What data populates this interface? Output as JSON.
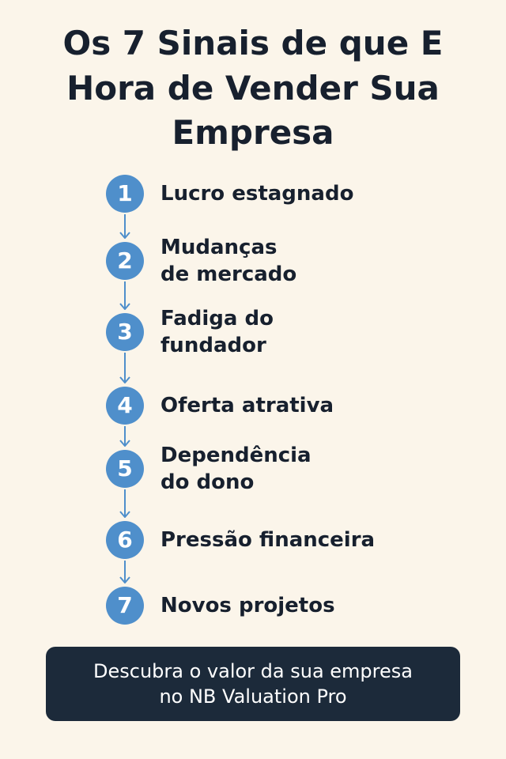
{
  "title": {
    "line1": "Os 7 Sinais de que E",
    "line2": "Hora de Vender Sua",
    "line3": "Empresa"
  },
  "accent_color": "#4f8fcb",
  "steps": [
    {
      "number": "1",
      "line1": "Lucro estagnado",
      "line2": ""
    },
    {
      "number": "2",
      "line1": "Mudanças",
      "line2": "de mercado"
    },
    {
      "number": "3",
      "line1": "Fadiga do",
      "line2": "fundador"
    },
    {
      "number": "4",
      "line1": "Oferta atrativa",
      "line2": ""
    },
    {
      "number": "5",
      "line1": "Dependência",
      "line2": "do dono"
    },
    {
      "number": "6",
      "line1": "Pressão financeira",
      "line2": ""
    },
    {
      "number": "7",
      "line1": "Novos projetos",
      "line2": ""
    }
  ],
  "cta": {
    "line1": "Descubra o valor da sua empresa",
    "line2": "no NB Valuation Pro"
  }
}
